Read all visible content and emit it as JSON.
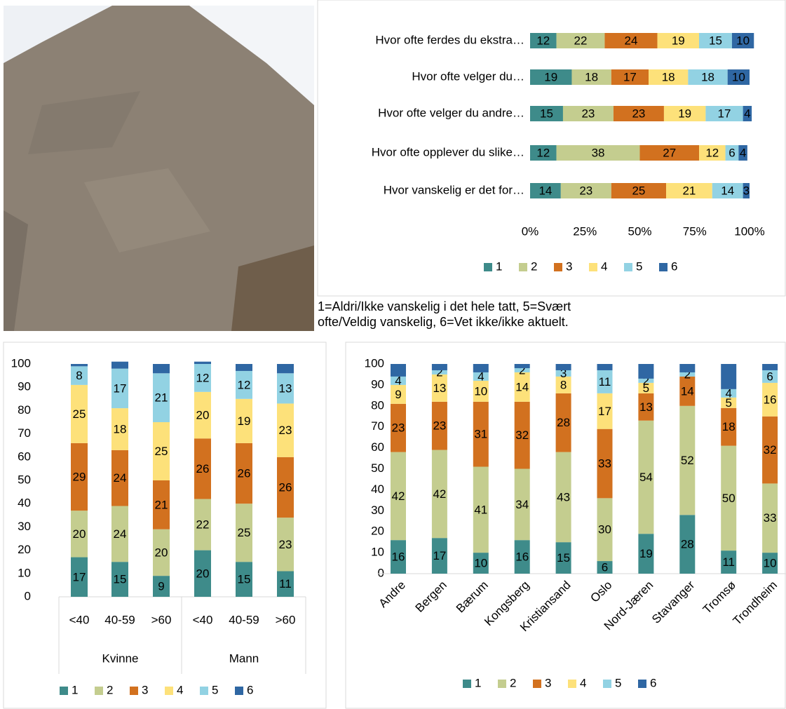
{
  "caption": "1=Aldri/Ikke vanskelig i det hele tatt, 5=Svært ofte/Veldig vanskelig, 6=Vet ikke/ikke aktuelt.",
  "chart_data": [
    {
      "type": "bar",
      "orientation": "horizontal",
      "stacked": true,
      "grid": false,
      "legend": "bottom",
      "categories": [
        "Hvor ofte ferdes du ekstra…",
        "Hvor ofte velger du…",
        "Hvor ofte velger du andre…",
        "Hvor ofte opplever du slike…",
        "Hvor vanskelig er det for…"
      ],
      "xlim": [
        0,
        100
      ],
      "xticks": [
        {
          "value": 0,
          "label": "0%"
        },
        {
          "value": 25,
          "label": "25%"
        },
        {
          "value": 50,
          "label": "50%"
        },
        {
          "value": 75,
          "label": "75%"
        },
        {
          "value": 100,
          "label": "100%"
        }
      ],
      "series": [
        {
          "name": "1",
          "color": "#3e8b8a",
          "data_labels": true,
          "values": [
            12,
            19,
            15,
            12,
            14
          ]
        },
        {
          "name": "2",
          "color": "#c4cd8f",
          "data_labels": true,
          "values": [
            22,
            18,
            23,
            38,
            23
          ]
        },
        {
          "name": "3",
          "color": "#d2711f",
          "data_labels": true,
          "values": [
            24,
            17,
            23,
            27,
            25
          ]
        },
        {
          "name": "4",
          "color": "#fde17a",
          "data_labels": true,
          "values": [
            19,
            18,
            19,
            12,
            21
          ]
        },
        {
          "name": "5",
          "color": "#92d2e3",
          "data_labels": true,
          "values": [
            15,
            18,
            17,
            6,
            14
          ]
        },
        {
          "name": "6",
          "color": "#2f67a3",
          "data_labels": true,
          "values": [
            10,
            10,
            4,
            4,
            3
          ]
        }
      ]
    },
    {
      "type": "bar",
      "orientation": "vertical",
      "stacked": true,
      "grid": false,
      "legend": "bottom",
      "categories": [
        "<40",
        "40-59",
        ">60",
        "<40",
        "40-59",
        ">60"
      ],
      "category_groups": [
        "Kvinne",
        "Mann"
      ],
      "ylim": [
        0,
        100
      ],
      "yticks": [
        0,
        10,
        20,
        30,
        40,
        50,
        60,
        70,
        80,
        90,
        100
      ],
      "series": [
        {
          "name": "1",
          "color": "#3e8b8a",
          "data_labels": true,
          "values": [
            17,
            15,
            9,
            20,
            15,
            11
          ]
        },
        {
          "name": "2",
          "color": "#c4cd8f",
          "data_labels": true,
          "values": [
            20,
            24,
            20,
            22,
            25,
            23
          ]
        },
        {
          "name": "3",
          "color": "#d2711f",
          "data_labels": true,
          "values": [
            29,
            24,
            21,
            26,
            26,
            26
          ]
        },
        {
          "name": "4",
          "color": "#fde17a",
          "data_labels": true,
          "values": [
            25,
            18,
            25,
            20,
            19,
            23
          ]
        },
        {
          "name": "5",
          "color": "#92d2e3",
          "data_labels": true,
          "values": [
            8,
            17,
            21,
            12,
            12,
            13
          ]
        },
        {
          "name": "6",
          "color": "#2f67a3",
          "data_labels": false,
          "values": [
            1,
            3,
            4,
            1,
            3,
            4
          ]
        }
      ]
    },
    {
      "type": "bar",
      "orientation": "vertical",
      "stacked": true,
      "grid": false,
      "legend": "bottom",
      "categories": [
        "Andre",
        "Bergen",
        "Bærum",
        "Kongsberg",
        "Kristiansand",
        "Oslo",
        "Nord-Jæren",
        "Stavanger",
        "Tromsø",
        "Trondheim"
      ],
      "ylim": [
        0,
        100
      ],
      "yticks": [
        0,
        10,
        20,
        30,
        40,
        50,
        60,
        70,
        80,
        90,
        100
      ],
      "series": [
        {
          "name": "1",
          "color": "#3e8b8a",
          "data_labels": true,
          "values": [
            16,
            17,
            10,
            16,
            15,
            6,
            19,
            28,
            11,
            10
          ]
        },
        {
          "name": "2",
          "color": "#c4cd8f",
          "data_labels": true,
          "values": [
            42,
            42,
            41,
            34,
            43,
            30,
            54,
            52,
            50,
            33
          ]
        },
        {
          "name": "3",
          "color": "#d2711f",
          "data_labels": true,
          "values": [
            23,
            23,
            31,
            32,
            28,
            33,
            13,
            14,
            18,
            32
          ]
        },
        {
          "name": "4",
          "color": "#fde17a",
          "data_labels": true,
          "values": [
            9,
            13,
            10,
            14,
            8,
            17,
            5,
            0,
            5,
            16
          ]
        },
        {
          "name": "5",
          "color": "#92d2e3",
          "data_labels": true,
          "values": [
            4,
            2,
            4,
            2,
            3,
            11,
            2,
            2,
            4,
            6
          ]
        },
        {
          "name": "6",
          "color": "#2f67a3",
          "data_labels": false,
          "values": [
            6,
            3,
            4,
            2,
            3,
            3,
            7,
            4,
            12,
            3
          ]
        }
      ]
    }
  ]
}
